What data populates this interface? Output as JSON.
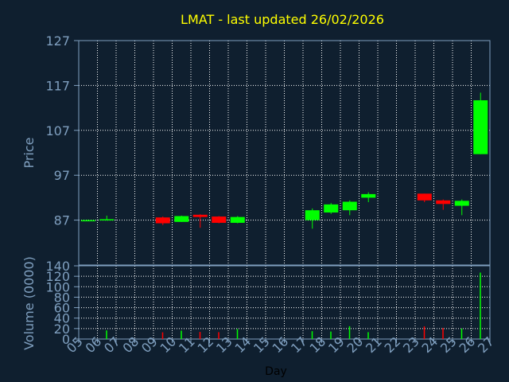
{
  "chart_data": [
    {
      "type": "candlestick",
      "title": "LMAT - last updated 26/02/2026",
      "ylabel": "Price",
      "xlabel": "Day",
      "ylim": [
        77,
        127
      ],
      "y_ticks": [
        "87",
        "97",
        "107",
        "117",
        "127"
      ],
      "x_ticks": [
        "05",
        "06",
        "07",
        "08",
        "09",
        "10",
        "11",
        "12",
        "13",
        "14",
        "15",
        "16",
        "17",
        "18",
        "19",
        "20",
        "21",
        "22",
        "23",
        "24",
        "25",
        "26",
        "27"
      ],
      "grid": true,
      "colors": {
        "up": "#00ff00",
        "down": "#ff0000",
        "grid": "#ffffff",
        "frame": "#7f9fbf",
        "background": "#0f1f2f"
      },
      "candles": [
        {
          "day": 5,
          "open": 87.0,
          "high": 87.1,
          "low": 86.9,
          "close": 87.0
        },
        {
          "day": 6,
          "open": 87.0,
          "high": 88.0,
          "low": 86.9,
          "close": 87.2
        },
        {
          "day": 9,
          "open": 87.6,
          "high": 87.8,
          "low": 85.9,
          "close": 86.3
        },
        {
          "day": 10,
          "open": 86.6,
          "high": 88.0,
          "low": 86.6,
          "close": 87.9
        },
        {
          "day": 11,
          "open": 88.2,
          "high": 88.3,
          "low": 85.3,
          "close": 87.7
        },
        {
          "day": 12,
          "open": 87.8,
          "high": 87.9,
          "low": 86.3,
          "close": 86.4
        },
        {
          "day": 13,
          "open": 86.4,
          "high": 87.9,
          "low": 86.3,
          "close": 87.7
        },
        {
          "day": 17,
          "open": 87.0,
          "high": 89.6,
          "low": 85.1,
          "close": 89.2
        },
        {
          "day": 18,
          "open": 88.7,
          "high": 90.8,
          "low": 88.4,
          "close": 90.5
        },
        {
          "day": 19,
          "open": 89.2,
          "high": 91.4,
          "low": 88.1,
          "close": 91.1
        },
        {
          "day": 20,
          "open": 92.0,
          "high": 93.2,
          "low": 91.0,
          "close": 92.8
        },
        {
          "day": 23,
          "open": 92.9,
          "high": 92.9,
          "low": 91.0,
          "close": 91.4
        },
        {
          "day": 24,
          "open": 91.4,
          "high": 91.6,
          "low": 89.3,
          "close": 90.6
        },
        {
          "day": 25,
          "open": 90.2,
          "high": 91.6,
          "low": 88.1,
          "close": 91.3
        },
        {
          "day": 26,
          "open": 101.7,
          "high": 115.4,
          "low": 101.7,
          "close": 113.7
        }
      ]
    },
    {
      "type": "bar",
      "ylabel": "Volume (0000)",
      "ylim": [
        0,
        140
      ],
      "y_ticks": [
        "0",
        "20",
        "40",
        "60",
        "80",
        "100",
        "120",
        "140"
      ],
      "grid": true,
      "bars": [
        {
          "day": 6,
          "value": 16.5,
          "color": "#00ff00"
        },
        {
          "day": 9,
          "value": 12.8,
          "color": "#ff0000"
        },
        {
          "day": 10,
          "value": 16.0,
          "color": "#00ff00"
        },
        {
          "day": 11,
          "value": 13.6,
          "color": "#ff0000"
        },
        {
          "day": 12,
          "value": 13.1,
          "color": "#ff0000"
        },
        {
          "day": 13,
          "value": 19.1,
          "color": "#00ff00"
        },
        {
          "day": 17,
          "value": 15.0,
          "color": "#00ff00"
        },
        {
          "day": 18,
          "value": 14.3,
          "color": "#00ff00"
        },
        {
          "day": 19,
          "value": 24.5,
          "color": "#00ff00"
        },
        {
          "day": 20,
          "value": 13.1,
          "color": "#00ff00"
        },
        {
          "day": 23,
          "value": 24.2,
          "color": "#ff0000"
        },
        {
          "day": 24,
          "value": 21.0,
          "color": "#ff0000"
        },
        {
          "day": 25,
          "value": 20.0,
          "color": "#00ff00"
        },
        {
          "day": 26,
          "value": 127.0,
          "color": "#00ff00"
        }
      ]
    }
  ]
}
